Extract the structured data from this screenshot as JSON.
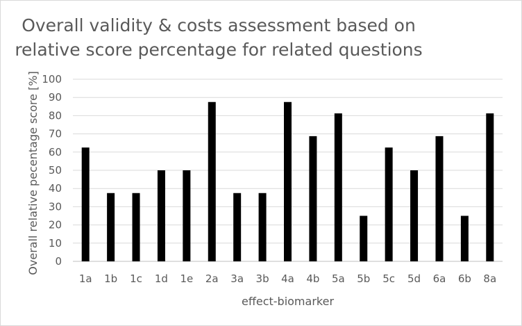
{
  "chart_data": {
    "type": "bar",
    "title_line1": "Overall validity & costs assessment based on",
    "title_line2": "relative score percentage for related questions",
    "xlabel": "effect-biomarker",
    "ylabel": "Overall relative pecentage score [%]",
    "ylim": [
      0,
      100
    ],
    "yticks": [
      0,
      10,
      20,
      30,
      40,
      50,
      60,
      70,
      80,
      90,
      100
    ],
    "grid": true,
    "legend": "none",
    "categories": [
      "1a",
      "1b",
      "1c",
      "1d",
      "1e",
      "2a",
      "3a",
      "3b",
      "4a",
      "4b",
      "5a",
      "5b",
      "5c",
      "5d",
      "6a",
      "6b",
      "8a"
    ],
    "values": [
      62.5,
      37.5,
      37.5,
      50,
      50,
      87.5,
      37.5,
      37.5,
      87.5,
      68.75,
      81.25,
      25,
      62.5,
      50,
      68.75,
      25,
      81.25
    ],
    "colors": {
      "bar": "#000000",
      "grid": "#d9d9d9",
      "text": "#595959",
      "axis": "#bfbfbf"
    }
  }
}
